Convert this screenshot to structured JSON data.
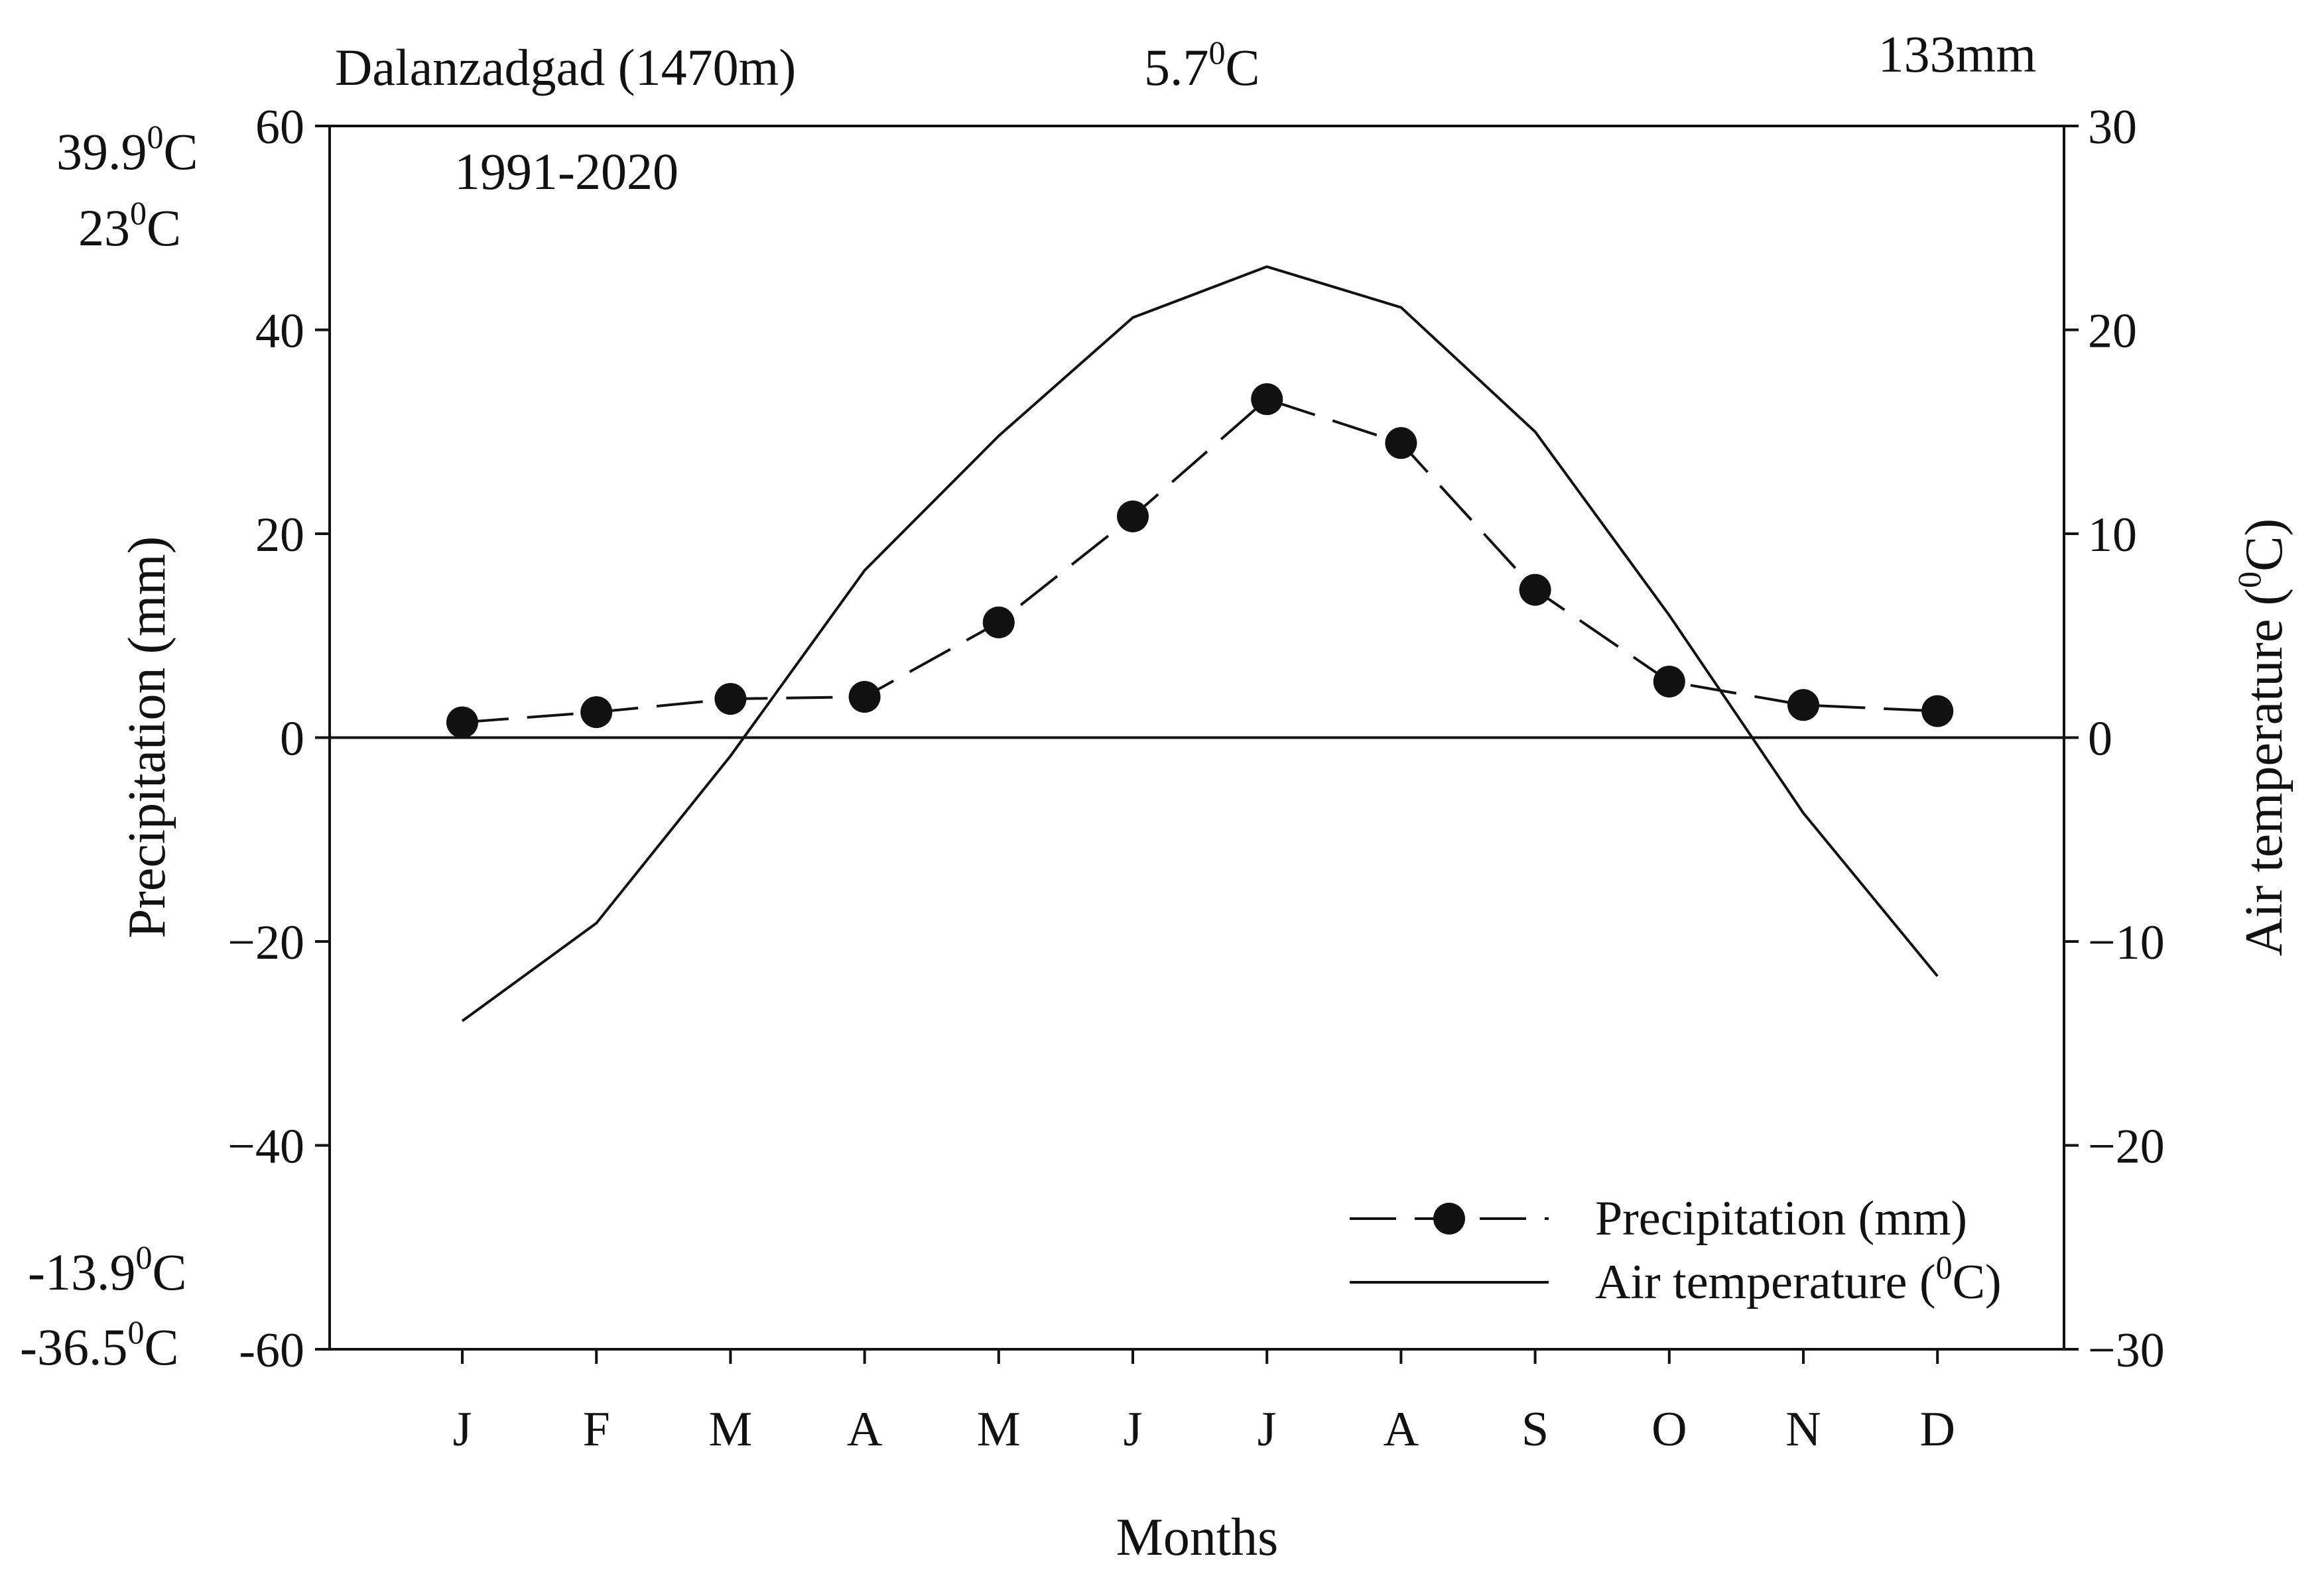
{
  "chart_data": {
    "type": "line",
    "categories": [
      "J",
      "F",
      "M",
      "A",
      "M",
      "J",
      "J",
      "A",
      "S",
      "O",
      "N",
      "D"
    ],
    "series": [
      {
        "name": "Precipitation (mm)",
        "axis": "left",
        "style": "dashed-with-markers",
        "values": [
          1.5,
          2.5,
          3.8,
          4.0,
          11.3,
          21.7,
          33.2,
          28.9,
          14.5,
          5.5,
          3.2,
          2.6
        ]
      },
      {
        "name": "Air temperature (0C)",
        "name_parts": {
          "pre": "Air temperature (",
          "sup": "0",
          "post": "C)"
        },
        "axis": "right",
        "style": "solid",
        "values": [
          -13.9,
          -9.1,
          -0.9,
          8.2,
          14.8,
          20.6,
          23.1,
          21.1,
          15.0,
          6.0,
          -3.7,
          -11.7
        ]
      }
    ],
    "xlabel": "Months",
    "ylabel_left": "Precipitation (mm)",
    "ylabel_right": {
      "pre": "Air temperature (",
      "sup": "0",
      "post": "C)"
    },
    "ylim_left": [
      -60,
      60
    ],
    "ylim_right": [
      -30,
      30
    ],
    "yticks_left": [
      60,
      40,
      20,
      0,
      -20,
      -40,
      -60
    ],
    "yticks_left_labels": [
      "60",
      "40",
      "20",
      "0",
      "−20",
      "−40",
      "-60"
    ],
    "yticks_right": [
      30,
      20,
      10,
      0,
      -10,
      -20,
      -30
    ],
    "yticks_right_labels": [
      "30",
      "20",
      "10",
      "0",
      "−10",
      "−20",
      "−30"
    ],
    "zero_line": true,
    "grid": false,
    "legend_position": "bottom-right",
    "annotations": {
      "station": "Dalanzadgad (1470m)",
      "period": "1991-2020",
      "mean_temp": {
        "pre": "5.7",
        "sup": "0",
        "post": "C"
      },
      "annual_precip": "133mm",
      "abs_max_temp": {
        "pre": "39.9",
        "sup": "0",
        "post": "C"
      },
      "mean_max_temp": {
        "pre": "23",
        "sup": "0",
        "post": "C"
      },
      "mean_min_temp": {
        "pre": "-13.9",
        "sup": "0",
        "post": "C"
      },
      "abs_min_temp": {
        "pre": "-36.5",
        "sup": "0",
        "post": "C"
      }
    }
  }
}
